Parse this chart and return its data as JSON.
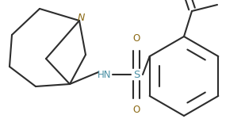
{
  "bg_color": "#ffffff",
  "line_color": "#2d2d2d",
  "N_color": "#8B6914",
  "O_color": "#8B6914",
  "S_color": "#4a90a4",
  "NH_color": "#4a90a4",
  "line_width": 1.5,
  "figsize": [
    3.09,
    1.74
  ],
  "dpi": 100,
  "xlim": [
    0,
    309
  ],
  "ylim": [
    0,
    174
  ]
}
